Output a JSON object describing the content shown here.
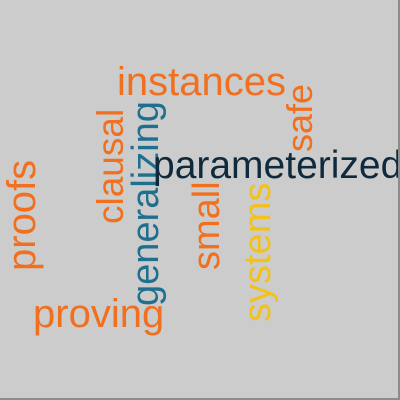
{
  "colors": {
    "orange": "#f07020",
    "teal": "#1f6f8f",
    "navy": "#0f2a3d",
    "gold": "#f2c21b",
    "background": "#cccccc"
  },
  "words": {
    "instances": {
      "text": "instances",
      "color": "#f07020"
    },
    "safe": {
      "text": "safe",
      "color": "#f07020"
    },
    "clausal": {
      "text": "clausal",
      "color": "#f07020"
    },
    "generalizing": {
      "text": "generalizing",
      "color": "#1f6f8f"
    },
    "parameterized": {
      "text": "parameterized",
      "color": "#0f2a3d"
    },
    "proofs": {
      "text": "proofs",
      "color": "#f07020"
    },
    "small": {
      "text": "small",
      "color": "#f07020"
    },
    "systems": {
      "text": "systems",
      "color": "#f2c21b"
    },
    "proving": {
      "text": "proving",
      "color": "#f07020"
    }
  }
}
